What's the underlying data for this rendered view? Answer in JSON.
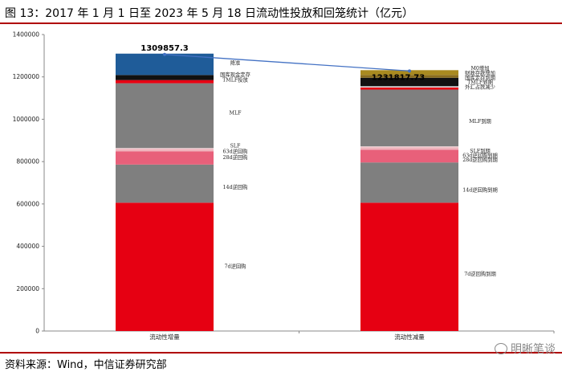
{
  "header": {
    "title": "图 13：2017 年 1 月 1 日至 2023 年 5 月 18 日流动性投放和回笼统计（亿元）"
  },
  "footer": {
    "source": "资料来源：Wind，中信证券研究部",
    "watermark": "明晰笔谈",
    "watermark_icon": "wechat-icon"
  },
  "colors": {
    "rule": "#b00000",
    "axis": "#888888",
    "connector": "#4472c4"
  },
  "chart_data": {
    "type": "bar",
    "stacked": true,
    "title": "2017 年 1 月 1 日至 2023 年 5 月 18 日流动性投放和回笼统计（亿元）",
    "categories": [
      "流动性增量",
      "流动性减量"
    ],
    "ylim": [
      0,
      1400000
    ],
    "yticks": [
      0,
      200000,
      400000,
      600000,
      800000,
      1000000,
      1200000,
      1400000
    ],
    "totals": [
      1309857.3,
      1231817.73
    ],
    "total_labels": [
      "1309857.3",
      "1231817.73"
    ],
    "bars": [
      {
        "name": "流动性增量",
        "segments": [
          {
            "label": "7d逆回购",
            "value": 606000,
            "color": "#e60012"
          },
          {
            "label": "14d逆回购",
            "value": 180000,
            "color": "#7f7f7f"
          },
          {
            "label": "28d逆回购",
            "value": 62000,
            "color": "#e8607a"
          },
          {
            "label": "63d逆回购",
            "value": 12000,
            "color": "#f0b4bd"
          },
          {
            "label": "SLF",
            "value": 4000,
            "color": "#f4d3d7"
          },
          {
            "label": "MLF",
            "value": 306000,
            "color": "#7f7f7f"
          },
          {
            "label": "TMLF投放",
            "value": 15000,
            "color": "#e60012"
          },
          {
            "label": "国库现金定存",
            "value": 24000,
            "color": "#111111"
          },
          {
            "label": "降准",
            "value": 100857.3,
            "color": "#1f5c99"
          }
        ]
      },
      {
        "name": "流动性减量",
        "segments": [
          {
            "label": "7d逆回购到期",
            "value": 606000,
            "color": "#e60012"
          },
          {
            "label": "14d逆回购到期",
            "value": 190000,
            "color": "#7f7f7f"
          },
          {
            "label": "28d逆回购到期",
            "value": 60000,
            "color": "#e8607a"
          },
          {
            "label": "63d逆回购到期",
            "value": 12000,
            "color": "#f0b4bd"
          },
          {
            "label": "SLF到期",
            "value": 4000,
            "color": "#f4d3d7"
          },
          {
            "label": "MLF到期",
            "value": 268000,
            "color": "#7f7f7f"
          },
          {
            "label": "外汇占款减少",
            "value": 10000,
            "color": "#e60012"
          },
          {
            "label": "TMLF到期",
            "value": 6000,
            "color": "#d9d9d9"
          },
          {
            "label": "国库定存到期",
            "value": 40000,
            "color": "#111111"
          },
          {
            "label": "财政存款增加",
            "value": 13000,
            "color": "#8a6d1e"
          },
          {
            "label": "M0增加",
            "value": 22817.73,
            "color": "#a98a20"
          }
        ]
      }
    ],
    "segment_labels": [
      [
        {
          "text": "降准",
          "value": 1265000
        },
        {
          "text": "国库现金定存",
          "value": 1210000
        },
        {
          "text": "TMLF投放",
          "value": 1185000
        },
        {
          "text": "MLF",
          "value": 1030000
        },
        {
          "text": "SLF",
          "value": 875000
        },
        {
          "text": "63d逆回购",
          "value": 848000
        },
        {
          "text": "28d逆回购",
          "value": 820000
        },
        {
          "text": "14d逆回购",
          "value": 680000
        },
        {
          "text": "7d逆回购",
          "value": 305000
        }
      ],
      [
        {
          "text": "M0增加",
          "value": 1240000
        },
        {
          "text": "财政存款增加",
          "value": 1218000
        },
        {
          "text": "国库定存到期",
          "value": 1195000
        },
        {
          "text": "TMLF到期",
          "value": 1174000
        },
        {
          "text": "外汇占款减少",
          "value": 1152000
        },
        {
          "text": "MLF到期",
          "value": 990000
        },
        {
          "text": "SLF到期",
          "value": 850000
        },
        {
          "text": "63d逆回购到期",
          "value": 829000
        },
        {
          "text": "28d逆回购到期",
          "value": 808000
        },
        {
          "text": "14d逆回购到期",
          "value": 665000
        },
        {
          "text": "7d逆回购到期",
          "value": 270000
        }
      ]
    ]
  }
}
